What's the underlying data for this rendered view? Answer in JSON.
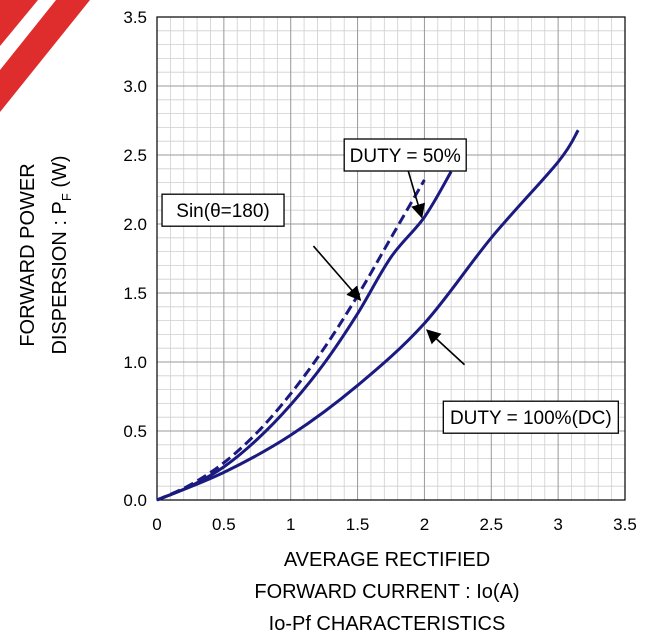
{
  "chart_data": {
    "type": "line",
    "title": "Io-Pf CHARACTERISTICS",
    "xlabel_lines": [
      "AVERAGE RECTIFIED",
      "FORWARD CURRENT : Io(A)"
    ],
    "ylabel_lines": [
      "FORWARD POWER",
      "DISPERSION : P",
      "F",
      " (W)"
    ],
    "xlim": [
      0,
      3.5
    ],
    "ylim": [
      0,
      3.5
    ],
    "x_ticks": [
      "0",
      "0.5",
      "1",
      "1.5",
      "2",
      "2.5",
      "3",
      "3.5"
    ],
    "y_ticks": [
      "0.0",
      "0.5",
      "1.0",
      "1.5",
      "2.0",
      "2.5",
      "3.0",
      "3.5"
    ],
    "grid": true,
    "series": [
      {
        "name": "Sin(θ=180)",
        "style": "solid",
        "color": "#1a1a80",
        "x": [
          0,
          0.25,
          0.5,
          0.75,
          1.0,
          1.25,
          1.5,
          1.75,
          2.0,
          2.2
        ],
        "y": [
          0,
          0.1,
          0.24,
          0.44,
          0.69,
          0.99,
          1.35,
          1.76,
          2.05,
          2.38
        ]
      },
      {
        "name": "DUTY = 50%",
        "style": "dashed",
        "color": "#1a1a80",
        "x": [
          0,
          0.25,
          0.5,
          0.75,
          1.0,
          1.25,
          1.5,
          1.75,
          2.0
        ],
        "y": [
          0,
          0.11,
          0.27,
          0.49,
          0.77,
          1.1,
          1.48,
          1.9,
          2.32
        ]
      },
      {
        "name": "DUTY = 100%(DC)",
        "style": "solid",
        "color": "#1a1a80",
        "x": [
          0,
          0.5,
          1.0,
          1.5,
          2.0,
          2.5,
          3.0,
          3.15
        ],
        "y": [
          0,
          0.2,
          0.47,
          0.83,
          1.28,
          1.9,
          2.45,
          2.68
        ]
      }
    ],
    "annotations": [
      {
        "text": "DUTY = 50%",
        "box": [
          1.4,
          2.5,
          0.17
        ],
        "arrow_from": [
          1.85,
          2.48
        ],
        "arrow_to": [
          1.98,
          2.05
        ]
      },
      {
        "text": "Sin(θ=180)",
        "box": [
          0.95,
          2.1,
          1.84
        ],
        "arrow_from": [
          1.17,
          1.84
        ],
        "arrow_to": [
          1.52,
          1.45
        ]
      },
      {
        "text": "DUTY = 100%(DC)",
        "box": [
          3.45,
          0.6,
          0.78
        ],
        "arrow_from": [
          2.3,
          0.98
        ],
        "arrow_to": [
          2.02,
          1.23
        ]
      }
    ],
    "colors": {
      "line": "#1a1a80",
      "grid_major": "#999999",
      "grid_minor": "#cfcfcf",
      "watermark": "#dd1111"
    }
  }
}
